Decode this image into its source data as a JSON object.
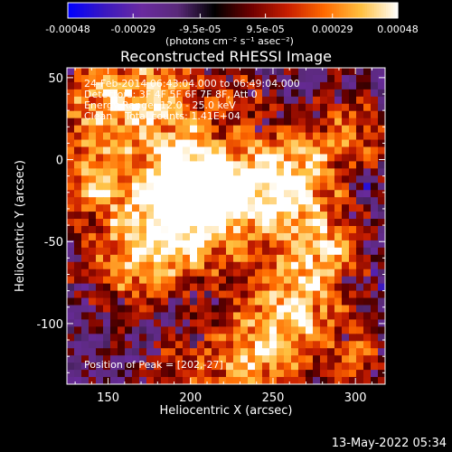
{
  "chart_data": {
    "type": "heatmap",
    "title": "Reconstructed RHESSI Image",
    "xlabel": "Heliocentric X (arcsec)",
    "ylabel": "Heliocentric Y (arcsec)",
    "xlim": [
      125,
      318
    ],
    "ylim": [
      -137,
      56
    ],
    "x_ticks": [
      150,
      200,
      250,
      300
    ],
    "y_ticks": [
      50,
      0,
      -50,
      -100
    ],
    "colorbar": {
      "ticks": [
        -0.00048,
        -0.00029,
        -9.5e-05,
        9.5e-05,
        0.00029,
        0.00048
      ],
      "tick_labels": [
        "-0.00048",
        "-0.00029",
        "-9.5e-05",
        "9.5e-05",
        "0.00029",
        "0.00048"
      ],
      "units_label": "(photons cm⁻² s⁻¹ asec⁻²)",
      "colors": [
        "#0000ff",
        "#3a18c0",
        "#6a2aa0",
        "#5a2a7a",
        "#000000",
        "#6e0000",
        "#c81e00",
        "#ff6a00",
        "#ffc040",
        "#ffffff"
      ]
    },
    "annotations": {
      "time_range": "24-Feb-2014 06:43:04.000 to 06:49:04.000",
      "detectors": "Detectors: 3F 4F 5F 6F 7F 8F, Att 0",
      "energy_range": "Energy Range: 12.0 - 25.0 keV",
      "method_counts": "Clean    Total counts: 1.41E+04",
      "peak": "Position of Peak = [202,-27]"
    },
    "peak_position": [
      202,
      -27
    ],
    "footer_date": "13-May-2022 05:34"
  }
}
